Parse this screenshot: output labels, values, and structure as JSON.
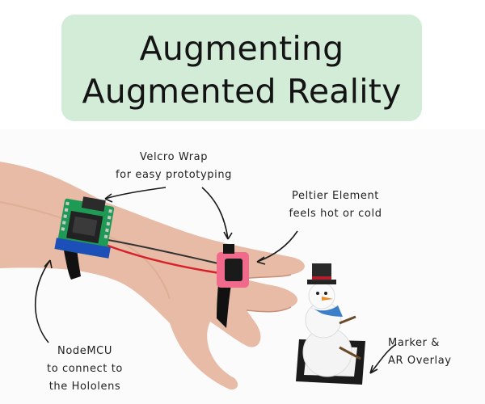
{
  "title": {
    "line1": "Augmenting",
    "line2": "Augmented Reality"
  },
  "callouts": {
    "velcro": {
      "line1": "Velcro Wrap",
      "line2": "for easy prototyping"
    },
    "peltier": {
      "line1": "Peltier Element",
      "line2": "feels hot or cold"
    },
    "nodemcu": {
      "line1": "NodeMCU",
      "line2": "to connect to",
      "line3": "the Hololens"
    },
    "marker": {
      "line1": "Marker &",
      "line2": "AR Overlay"
    }
  },
  "colors": {
    "title_bg": "#d2ecd8",
    "board": "#1f9a55",
    "pad_pink": "#f06a8c",
    "skin": "#e6b7a0"
  }
}
